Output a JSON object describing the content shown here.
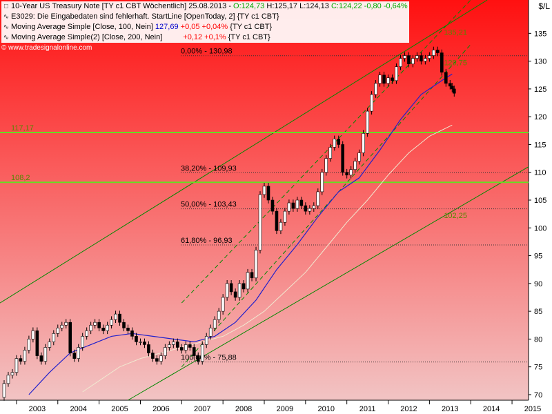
{
  "legend": {
    "title": {
      "name": "10-Year US Treasury Note [TY c1 CBT  Wöchentlich]",
      "date": "25.08.2013",
      "open": "O:124,73",
      "high": "H:125,17",
      "low": "L:124,13",
      "close_change": "C:124,22 -0,80 -0,64%"
    },
    "error": "E3029: Die Eingabedaten sind fehlerhaft. StartLine [OpenToday, 2] {TY c1 CBT}",
    "ma100": {
      "label": "Moving Average Simple [Close, 100, Nein]",
      "value": "127,69",
      "change": "+0,05 +0,04%",
      "symbol": "{TY c1 CBT}"
    },
    "ma200": {
      "label": "Moving Average Simple(2) [Close, 200, Nein]",
      "value": "",
      "change": "+0,12 +0,1%",
      "symbol": "{TY c1 CBT}"
    },
    "source": "© www.tradesignalonline.com"
  },
  "colors": {
    "background_top": "#ff1010",
    "background_bottom": "#f2c4c4",
    "candle_up": "#ffffff",
    "candle_down": "#000000",
    "ma100": "#2020cc",
    "ma200": "#f0e8d0",
    "channel_lines": "#008800",
    "horizontal_levels": "#66dd22",
    "fib_lines": "#333333",
    "fib_text": "#000000",
    "level_text": "#558800"
  },
  "chart_data": {
    "type": "candlestick",
    "title": "10-Year US Treasury Note [TY c1 CBT  Wöchentlich]",
    "ylabel": "$/L",
    "ylim": [
      69,
      141
    ],
    "x_ticks": [
      "2003",
      "2004",
      "2005",
      "2006",
      "2007",
      "2008",
      "2009",
      "2010",
      "2011",
      "2012",
      "2013",
      "2014",
      "2015"
    ],
    "y_ticks": [
      70,
      75,
      80,
      85,
      90,
      95,
      100,
      105,
      110,
      115,
      120,
      125,
      130,
      135
    ],
    "y_tick_labels": [
      "70",
      "75",
      "80",
      "85",
      "90",
      "95",
      "100",
      "105",
      "110",
      "115",
      "120",
      "125",
      "130",
      "135"
    ],
    "x_range": [
      2002.6,
      2015.4
    ],
    "price_series": [
      [
        2002.6,
        69.5
      ],
      [
        2002.7,
        72.0
      ],
      [
        2002.8,
        73.5
      ],
      [
        2002.9,
        74.0
      ],
      [
        2003.0,
        76.5
      ],
      [
        2003.1,
        76.0
      ],
      [
        2003.2,
        78.0
      ],
      [
        2003.3,
        80.0
      ],
      [
        2003.4,
        81.5
      ],
      [
        2003.5,
        77.0
      ],
      [
        2003.6,
        76.0
      ],
      [
        2003.7,
        78.5
      ],
      [
        2003.8,
        79.5
      ],
      [
        2003.9,
        81.0
      ],
      [
        2004.0,
        82.0
      ],
      [
        2004.1,
        82.5
      ],
      [
        2004.2,
        83.0
      ],
      [
        2004.3,
        77.5
      ],
      [
        2004.4,
        76.5
      ],
      [
        2004.5,
        78.5
      ],
      [
        2004.6,
        80.5
      ],
      [
        2004.7,
        81.5
      ],
      [
        2004.8,
        82.5
      ],
      [
        2004.9,
        83.0
      ],
      [
        2005.0,
        82.0
      ],
      [
        2005.1,
        81.5
      ],
      [
        2005.2,
        82.5
      ],
      [
        2005.3,
        83.5
      ],
      [
        2005.4,
        84.5
      ],
      [
        2005.5,
        83.0
      ],
      [
        2005.6,
        82.0
      ],
      [
        2005.7,
        81.5
      ],
      [
        2005.8,
        80.5
      ],
      [
        2005.9,
        79.5
      ],
      [
        2006.0,
        79.5
      ],
      [
        2006.1,
        79.0
      ],
      [
        2006.2,
        77.5
      ],
      [
        2006.3,
        76.5
      ],
      [
        2006.4,
        76.0
      ],
      [
        2006.5,
        77.0
      ],
      [
        2006.6,
        78.5
      ],
      [
        2006.7,
        79.0
      ],
      [
        2006.8,
        79.5
      ],
      [
        2006.9,
        78.5
      ],
      [
        2007.0,
        78.0
      ],
      [
        2007.1,
        79.0
      ],
      [
        2007.2,
        78.5
      ],
      [
        2007.3,
        77.0
      ],
      [
        2007.4,
        76.0
      ],
      [
        2007.5,
        79.0
      ],
      [
        2007.6,
        80.5
      ],
      [
        2007.7,
        82.0
      ],
      [
        2007.8,
        83.5
      ],
      [
        2007.9,
        85.0
      ],
      [
        2008.0,
        87.5
      ],
      [
        2008.1,
        90.0
      ],
      [
        2008.2,
        88.5
      ],
      [
        2008.3,
        87.5
      ],
      [
        2008.4,
        90.0
      ],
      [
        2008.5,
        89.0
      ],
      [
        2008.6,
        92.0
      ],
      [
        2008.7,
        91.0
      ],
      [
        2008.8,
        96.0
      ],
      [
        2008.9,
        106.0
      ],
      [
        2009.0,
        107.5
      ],
      [
        2009.1,
        105.0
      ],
      [
        2009.2,
        103.0
      ],
      [
        2009.3,
        99.5
      ],
      [
        2009.4,
        101.0
      ],
      [
        2009.5,
        103.0
      ],
      [
        2009.6,
        104.5
      ],
      [
        2009.7,
        103.5
      ],
      [
        2009.8,
        105.0
      ],
      [
        2009.9,
        104.0
      ],
      [
        2010.0,
        103.0
      ],
      [
        2010.1,
        103.5
      ],
      [
        2010.2,
        104.0
      ],
      [
        2010.3,
        106.5
      ],
      [
        2010.4,
        110.0
      ],
      [
        2010.5,
        112.5
      ],
      [
        2010.6,
        114.5
      ],
      [
        2010.7,
        116.0
      ],
      [
        2010.8,
        115.0
      ],
      [
        2010.9,
        110.0
      ],
      [
        2011.0,
        109.5
      ],
      [
        2011.1,
        110.5
      ],
      [
        2011.2,
        112.0
      ],
      [
        2011.3,
        113.5
      ],
      [
        2011.4,
        117.0
      ],
      [
        2011.5,
        121.0
      ],
      [
        2011.6,
        124.0
      ],
      [
        2011.7,
        126.0
      ],
      [
        2011.8,
        127.5
      ],
      [
        2011.9,
        126.0
      ],
      [
        2012.0,
        127.0
      ],
      [
        2012.1,
        126.5
      ],
      [
        2012.2,
        129.0
      ],
      [
        2012.3,
        130.5
      ],
      [
        2012.4,
        131.0
      ],
      [
        2012.5,
        129.5
      ],
      [
        2012.6,
        130.5
      ],
      [
        2012.7,
        131.0
      ],
      [
        2012.8,
        130.0
      ],
      [
        2012.9,
        130.5
      ],
      [
        2013.0,
        131.0
      ],
      [
        2013.1,
        132.0
      ],
      [
        2013.2,
        131.5
      ],
      [
        2013.3,
        128.0
      ],
      [
        2013.4,
        126.0
      ],
      [
        2013.5,
        125.5
      ],
      [
        2013.55,
        125.0
      ],
      [
        2013.6,
        124.22
      ]
    ],
    "ma100_series": [
      [
        2003.3,
        70.0
      ],
      [
        2003.8,
        74.0
      ],
      [
        2004.3,
        77.5
      ],
      [
        2004.8,
        79.0
      ],
      [
        2005.3,
        80.5
      ],
      [
        2005.8,
        81.0
      ],
      [
        2006.3,
        80.5
      ],
      [
        2006.8,
        80.0
      ],
      [
        2007.3,
        79.5
      ],
      [
        2007.8,
        80.5
      ],
      [
        2008.3,
        83.0
      ],
      [
        2008.8,
        87.0
      ],
      [
        2009.3,
        92.5
      ],
      [
        2009.8,
        97.0
      ],
      [
        2010.3,
        102.0
      ],
      [
        2010.8,
        106.5
      ],
      [
        2011.3,
        109.0
      ],
      [
        2011.8,
        114.0
      ],
      [
        2012.3,
        119.5
      ],
      [
        2012.8,
        124.0
      ],
      [
        2013.3,
        126.5
      ],
      [
        2013.55,
        127.69
      ]
    ],
    "ma200_series": [
      [
        2004.6,
        70.5
      ],
      [
        2005.0,
        72.5
      ],
      [
        2005.5,
        75.0
      ],
      [
        2006.0,
        76.5
      ],
      [
        2006.5,
        77.5
      ],
      [
        2007.0,
        78.5
      ],
      [
        2007.5,
        79.5
      ],
      [
        2008.0,
        80.5
      ],
      [
        2008.5,
        82.5
      ],
      [
        2009.0,
        85.0
      ],
      [
        2009.5,
        88.5
      ],
      [
        2010.0,
        92.0
      ],
      [
        2010.5,
        96.5
      ],
      [
        2011.0,
        101.0
      ],
      [
        2011.5,
        105.0
      ],
      [
        2012.0,
        109.5
      ],
      [
        2012.5,
        113.5
      ],
      [
        2013.0,
        116.5
      ],
      [
        2013.55,
        118.5
      ]
    ],
    "horizontal_levels": [
      {
        "label": "117,17",
        "value": 117.17
      },
      {
        "label": "108,2",
        "value": 108.2
      }
    ],
    "fibonacci": [
      {
        "label": "0,00% - 130,98",
        "value": 130.98
      },
      {
        "label": "38,20% - 109,93",
        "value": 109.93
      },
      {
        "label": "50,00% - 103,43",
        "value": 103.43
      },
      {
        "label": "61,80% - 96,93",
        "value": 96.93
      },
      {
        "label": "100,00% - 75,88",
        "value": 75.88
      }
    ],
    "channel_labels": [
      {
        "label": "135,21",
        "x": 2013.35,
        "value": 135.21
      },
      {
        "label": "129,75",
        "x": 2013.35,
        "value": 129.75
      },
      {
        "label": "102,25",
        "x": 2013.35,
        "value": 102.25
      }
    ],
    "channels": {
      "outer_upper": [
        [
          2002.6,
          86.5
        ],
        [
          2014.4,
          141.0
        ]
      ],
      "outer_lower": [
        [
          2005.7,
          69.0
        ],
        [
          2015.4,
          111.0
        ]
      ],
      "inner_upper": [
        [
          2007.0,
          86.5
        ],
        [
          2014.0,
          141.0
        ]
      ],
      "inner_lower": [
        [
          2007.0,
          75.0
        ],
        [
          2014.0,
          133.0
        ]
      ]
    }
  }
}
